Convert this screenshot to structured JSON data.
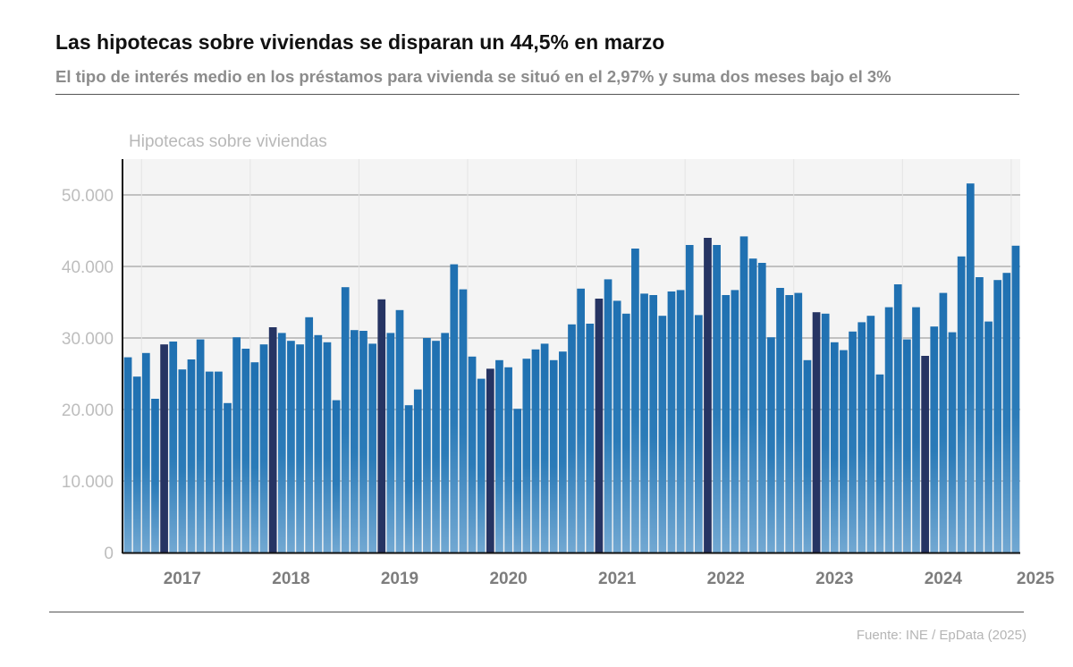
{
  "title": "Las hipotecas sobre viviendas se disparan un 44,5% en marzo",
  "subtitle": "El tipo de interés medio en los préstamos para vivienda se situó en el 2,97% y suma dos meses bajo el 3%",
  "source": "Fuente: INE / EpData (2025)",
  "colors": {
    "bar": "#2a7ab8",
    "bar_highlight": "#263463",
    "plot_bg": "#f4f4f4"
  },
  "chart_data": {
    "type": "bar",
    "ylabel": "Hipotecas sobre viviendas",
    "ylim": [
      0,
      55000
    ],
    "yticks": [
      0,
      10000,
      20000,
      30000,
      40000,
      50000
    ],
    "ytick_labels": [
      "0",
      "10.000",
      "20.000",
      "30.000",
      "40.000",
      "50.000"
    ],
    "xtick_labels": [
      {
        "label": "2017",
        "index": 6
      },
      {
        "label": "2018",
        "index": 18
      },
      {
        "label": "2019",
        "index": 30
      },
      {
        "label": "2020",
        "index": 42
      },
      {
        "label": "2021",
        "index": 54
      },
      {
        "label": "2022",
        "index": 66
      },
      {
        "label": "2023",
        "index": 78
      },
      {
        "label": "2024",
        "index": 90
      },
      {
        "label": "2025",
        "index": 99
      }
    ],
    "grid": true,
    "legend": "none",
    "start": "2016-11",
    "end": "2025-03",
    "highlight_month": "March",
    "values": [
      27300,
      24600,
      27900,
      21500,
      29100,
      29500,
      25600,
      27000,
      29800,
      25300,
      25300,
      20900,
      30100,
      28500,
      26600,
      29100,
      31500,
      30700,
      29600,
      29100,
      32900,
      30400,
      29400,
      21300,
      37100,
      31100,
      31000,
      29200,
      35400,
      30700,
      33900,
      20600,
      22800,
      30000,
      29600,
      30700,
      40300,
      36800,
      27400,
      24300,
      25700,
      26900,
      25900,
      20100,
      27100,
      28400,
      29200,
      26900,
      28100,
      31900,
      36900,
      32000,
      35500,
      38200,
      35200,
      33400,
      42500,
      36200,
      36000,
      33100,
      36500,
      36700,
      43000,
      33200,
      44000,
      43000,
      36000,
      36700,
      44200,
      41100,
      40500,
      30100,
      37000,
      36000,
      36300,
      26900,
      33600,
      33400,
      29400,
      28300,
      30900,
      32200,
      33100,
      24900,
      34300,
      37500,
      29800,
      34300,
      27500,
      31600,
      36300,
      30800,
      41400,
      51600,
      38500,
      32300,
      38100,
      39100,
      42900
    ]
  }
}
